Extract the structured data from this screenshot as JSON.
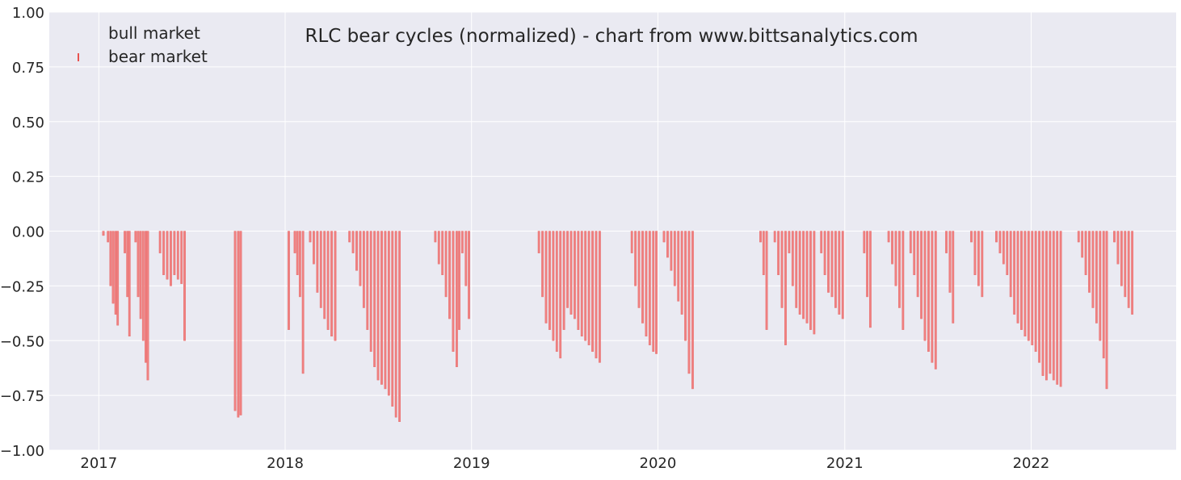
{
  "chart_data": {
    "type": "bar",
    "title": "RLC bear cycles (normalized)  - chart from www.bittsanalytics.com",
    "xlabel": "",
    "ylabel": "",
    "ylim": [
      -1.0,
      1.0
    ],
    "xlim": [
      "2016-09-26",
      "2022-10-12"
    ],
    "x_ticks": [
      "2017",
      "2018",
      "2019",
      "2020",
      "2021",
      "2022"
    ],
    "y_ticks": [
      "1.00",
      "0.75",
      "0.50",
      "0.25",
      "0.00",
      "−0.25",
      "−0.50",
      "−0.75",
      "−1.00"
    ],
    "grid": true,
    "legend": {
      "placement": "top-left",
      "entries": [
        "bull market",
        "bear market"
      ]
    },
    "colors": {
      "background": "#eaeaf2",
      "grid": "#ffffff",
      "bear": "#f08080",
      "bull": "#eaeaf2"
    },
    "series": [
      {
        "name": "bear market",
        "points": [
          [
            "2017-01-10",
            -0.02
          ],
          [
            "2017-01-19",
            -0.05
          ],
          [
            "2017-01-24",
            -0.25
          ],
          [
            "2017-01-29",
            -0.33
          ],
          [
            "2017-02-03",
            -0.38
          ],
          [
            "2017-02-07",
            -0.43
          ],
          [
            "2017-02-21",
            -0.1
          ],
          [
            "2017-02-26",
            -0.3
          ],
          [
            "2017-03-02",
            -0.48
          ],
          [
            "2017-03-14",
            -0.05
          ],
          [
            "2017-03-19",
            -0.3
          ],
          [
            "2017-03-24",
            -0.4
          ],
          [
            "2017-03-29",
            -0.5
          ],
          [
            "2017-04-03",
            -0.6
          ],
          [
            "2017-04-07",
            -0.68
          ],
          [
            "2017-05-01",
            -0.1
          ],
          [
            "2017-05-08",
            -0.2
          ],
          [
            "2017-05-15",
            -0.22
          ],
          [
            "2017-05-22",
            -0.25
          ],
          [
            "2017-05-29",
            -0.2
          ],
          [
            "2017-06-05",
            -0.22
          ],
          [
            "2017-06-12",
            -0.24
          ],
          [
            "2017-06-18",
            -0.5
          ],
          [
            "2017-09-25",
            -0.82
          ],
          [
            "2017-10-01",
            -0.85
          ],
          [
            "2017-10-06",
            -0.84
          ],
          [
            "2018-01-08",
            -0.45
          ],
          [
            "2018-01-20",
            -0.1
          ],
          [
            "2018-01-25",
            -0.2
          ],
          [
            "2018-01-30",
            -0.3
          ],
          [
            "2018-02-05",
            -0.65
          ],
          [
            "2018-02-19",
            -0.05
          ],
          [
            "2018-02-26",
            -0.15
          ],
          [
            "2018-03-05",
            -0.28
          ],
          [
            "2018-03-12",
            -0.35
          ],
          [
            "2018-03-19",
            -0.4
          ],
          [
            "2018-03-26",
            -0.45
          ],
          [
            "2018-04-02",
            -0.48
          ],
          [
            "2018-04-09",
            -0.5
          ],
          [
            "2018-05-07",
            -0.05
          ],
          [
            "2018-05-14",
            -0.1
          ],
          [
            "2018-05-21",
            -0.18
          ],
          [
            "2018-05-28",
            -0.25
          ],
          [
            "2018-06-04",
            -0.35
          ],
          [
            "2018-06-11",
            -0.45
          ],
          [
            "2018-06-18",
            -0.55
          ],
          [
            "2018-06-25",
            -0.62
          ],
          [
            "2018-07-02",
            -0.68
          ],
          [
            "2018-07-09",
            -0.7
          ],
          [
            "2018-07-16",
            -0.72
          ],
          [
            "2018-07-23",
            -0.75
          ],
          [
            "2018-07-30",
            -0.8
          ],
          [
            "2018-08-06",
            -0.85
          ],
          [
            "2018-08-13",
            -0.87
          ],
          [
            "2018-10-22",
            -0.05
          ],
          [
            "2018-10-29",
            -0.15
          ],
          [
            "2018-11-05",
            -0.2
          ],
          [
            "2018-11-12",
            -0.3
          ],
          [
            "2018-11-19",
            -0.4
          ],
          [
            "2018-11-26",
            -0.55
          ],
          [
            "2018-12-03",
            -0.62
          ],
          [
            "2018-12-08",
            -0.45
          ],
          [
            "2018-12-14",
            -0.1
          ],
          [
            "2018-12-21",
            -0.25
          ],
          [
            "2018-12-27",
            -0.4
          ],
          [
            "2019-05-13",
            -0.1
          ],
          [
            "2019-05-20",
            -0.3
          ],
          [
            "2019-05-27",
            -0.42
          ],
          [
            "2019-06-03",
            -0.45
          ],
          [
            "2019-06-10",
            -0.5
          ],
          [
            "2019-06-17",
            -0.55
          ],
          [
            "2019-06-24",
            -0.58
          ],
          [
            "2019-07-01",
            -0.45
          ],
          [
            "2019-07-08",
            -0.35
          ],
          [
            "2019-07-15",
            -0.38
          ],
          [
            "2019-07-22",
            -0.4
          ],
          [
            "2019-07-29",
            -0.45
          ],
          [
            "2019-08-05",
            -0.48
          ],
          [
            "2019-08-12",
            -0.5
          ],
          [
            "2019-08-19",
            -0.52
          ],
          [
            "2019-08-26",
            -0.55
          ],
          [
            "2019-09-02",
            -0.58
          ],
          [
            "2019-09-09",
            -0.6
          ],
          [
            "2019-11-11",
            -0.1
          ],
          [
            "2019-11-18",
            -0.25
          ],
          [
            "2019-11-25",
            -0.35
          ],
          [
            "2019-12-02",
            -0.42
          ],
          [
            "2019-12-09",
            -0.48
          ],
          [
            "2019-12-16",
            -0.52
          ],
          [
            "2019-12-23",
            -0.55
          ],
          [
            "2019-12-29",
            -0.56
          ],
          [
            "2020-01-13",
            -0.05
          ],
          [
            "2020-01-20",
            -0.12
          ],
          [
            "2020-01-27",
            -0.18
          ],
          [
            "2020-02-03",
            -0.25
          ],
          [
            "2020-02-10",
            -0.32
          ],
          [
            "2020-02-17",
            -0.38
          ],
          [
            "2020-02-24",
            -0.5
          ],
          [
            "2020-03-02",
            -0.65
          ],
          [
            "2020-03-09",
            -0.72
          ],
          [
            "2020-07-20",
            -0.05
          ],
          [
            "2020-07-26",
            -0.2
          ],
          [
            "2020-08-01",
            -0.45
          ],
          [
            "2020-08-17",
            -0.05
          ],
          [
            "2020-08-24",
            -0.2
          ],
          [
            "2020-08-31",
            -0.35
          ],
          [
            "2020-09-07",
            -0.52
          ],
          [
            "2020-09-14",
            -0.1
          ],
          [
            "2020-09-21",
            -0.25
          ],
          [
            "2020-09-28",
            -0.35
          ],
          [
            "2020-10-05",
            -0.38
          ],
          [
            "2020-10-12",
            -0.4
          ],
          [
            "2020-10-19",
            -0.42
          ],
          [
            "2020-10-26",
            -0.45
          ],
          [
            "2020-11-02",
            -0.47
          ],
          [
            "2020-11-16",
            -0.1
          ],
          [
            "2020-11-23",
            -0.2
          ],
          [
            "2020-11-30",
            -0.28
          ],
          [
            "2020-12-07",
            -0.3
          ],
          [
            "2020-12-14",
            -0.35
          ],
          [
            "2020-12-21",
            -0.38
          ],
          [
            "2020-12-28",
            -0.4
          ],
          [
            "2021-02-08",
            -0.1
          ],
          [
            "2021-02-14",
            -0.3
          ],
          [
            "2021-02-20",
            -0.44
          ],
          [
            "2021-03-28",
            -0.05
          ],
          [
            "2021-04-04",
            -0.15
          ],
          [
            "2021-04-11",
            -0.25
          ],
          [
            "2021-04-18",
            -0.35
          ],
          [
            "2021-04-25",
            -0.45
          ],
          [
            "2021-05-10",
            -0.1
          ],
          [
            "2021-05-17",
            -0.2
          ],
          [
            "2021-05-24",
            -0.3
          ],
          [
            "2021-05-31",
            -0.4
          ],
          [
            "2021-06-07",
            -0.5
          ],
          [
            "2021-06-14",
            -0.55
          ],
          [
            "2021-06-21",
            -0.6
          ],
          [
            "2021-06-28",
            -0.63
          ],
          [
            "2021-07-19",
            -0.1
          ],
          [
            "2021-07-26",
            -0.28
          ],
          [
            "2021-08-01",
            -0.42
          ],
          [
            "2021-09-06",
            -0.05
          ],
          [
            "2021-09-13",
            -0.2
          ],
          [
            "2021-09-20",
            -0.25
          ],
          [
            "2021-09-27",
            -0.3
          ],
          [
            "2021-10-25",
            -0.05
          ],
          [
            "2021-11-01",
            -0.1
          ],
          [
            "2021-11-08",
            -0.15
          ],
          [
            "2021-11-15",
            -0.2
          ],
          [
            "2021-11-22",
            -0.3
          ],
          [
            "2021-11-29",
            -0.38
          ],
          [
            "2021-12-06",
            -0.42
          ],
          [
            "2021-12-13",
            -0.45
          ],
          [
            "2021-12-20",
            -0.48
          ],
          [
            "2021-12-27",
            -0.5
          ],
          [
            "2022-01-03",
            -0.52
          ],
          [
            "2022-01-10",
            -0.55
          ],
          [
            "2022-01-17",
            -0.6
          ],
          [
            "2022-01-24",
            -0.66
          ],
          [
            "2022-01-31",
            -0.68
          ],
          [
            "2022-02-07",
            -0.65
          ],
          [
            "2022-02-14",
            -0.68
          ],
          [
            "2022-02-21",
            -0.7
          ],
          [
            "2022-02-28",
            -0.71
          ],
          [
            "2022-04-04",
            -0.05
          ],
          [
            "2022-04-11",
            -0.12
          ],
          [
            "2022-04-18",
            -0.2
          ],
          [
            "2022-04-25",
            -0.28
          ],
          [
            "2022-05-02",
            -0.35
          ],
          [
            "2022-05-09",
            -0.42
          ],
          [
            "2022-05-16",
            -0.5
          ],
          [
            "2022-05-23",
            -0.58
          ],
          [
            "2022-05-29",
            -0.72
          ],
          [
            "2022-06-13",
            -0.05
          ],
          [
            "2022-06-20",
            -0.15
          ],
          [
            "2022-06-27",
            -0.25
          ],
          [
            "2022-07-04",
            -0.3
          ],
          [
            "2022-07-11",
            -0.35
          ],
          [
            "2022-07-18",
            -0.38
          ]
        ]
      }
    ]
  }
}
